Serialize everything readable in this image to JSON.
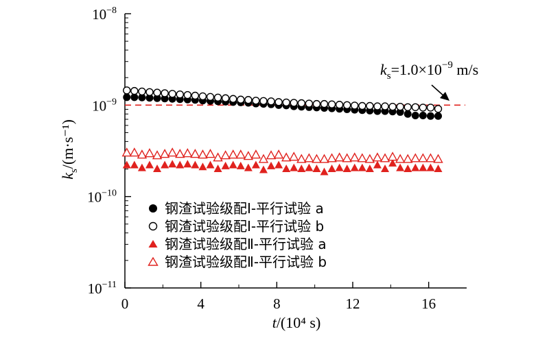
{
  "chart_data": {
    "type": "scatter",
    "x_axis": {
      "label_var": "t",
      "label_unit": "/(10⁴ s)",
      "range": [
        0,
        18
      ],
      "ticks": [
        0,
        4,
        8,
        12,
        16
      ],
      "tick_labels": [
        "0",
        "4",
        "8",
        "12",
        "16"
      ]
    },
    "y_axis": {
      "scale": "log",
      "label_var": "k",
      "label_sub": "s",
      "label_unit": "/(m·s⁻¹)",
      "range": [
        1e-11,
        1e-08
      ],
      "ticks": [
        1e-11,
        1e-10,
        1e-09,
        1e-08
      ],
      "tick_labels": [
        {
          "base": "10",
          "exp": "−11"
        },
        {
          "base": "10",
          "exp": "−10"
        },
        {
          "base": "10",
          "exp": "−9"
        },
        {
          "base": "10",
          "exp": "−8"
        }
      ]
    },
    "reference_line": {
      "y": 1e-09,
      "color": "#e0221e",
      "label": {
        "var": "k",
        "sub": "s",
        "rest": "=1.0×10",
        "exp": "−9",
        "unit": " m/s"
      }
    },
    "legend_position": "lower-left",
    "series": [
      {
        "name": "钢渣试验级配Ⅰ-平行试验 a",
        "marker": "circle-filled",
        "color": "#000000",
        "x": [
          0.1,
          0.5,
          0.9,
          1.3,
          1.7,
          2.1,
          2.5,
          2.9,
          3.3,
          3.7,
          4.1,
          4.5,
          4.9,
          5.3,
          5.7,
          6.1,
          6.5,
          6.9,
          7.3,
          7.7,
          8.1,
          8.5,
          8.9,
          9.3,
          9.7,
          10.1,
          10.5,
          10.9,
          11.3,
          11.7,
          12.1,
          12.5,
          12.9,
          13.3,
          13.7,
          14.1,
          14.5,
          14.9,
          15.3,
          15.7,
          16.1,
          16.5
        ],
        "y": [
          1.22e-09,
          1.22e-09,
          1.21e-09,
          1.2e-09,
          1.19e-09,
          1.18e-09,
          1.17e-09,
          1.16e-09,
          1.15e-09,
          1.14e-09,
          1.12e-09,
          1.11e-09,
          1.1e-09,
          1.09e-09,
          1.08e-09,
          1.07e-09,
          1.06e-09,
          1.04e-09,
          1.03e-09,
          1.02e-09,
          1e-09,
          9.9e-10,
          9.7e-10,
          9.6e-10,
          9.5e-10,
          9.4e-10,
          9.3e-10,
          9.2e-10,
          9.1e-10,
          9e-10,
          8.9e-10,
          8.8e-10,
          8.7e-10,
          8.6e-10,
          8.6e-10,
          8.5e-10,
          8.4e-10,
          8e-10,
          7.7e-10,
          7.7e-10,
          7.6e-10,
          7.6e-10
        ]
      },
      {
        "name": "钢渣试验级配Ⅰ-平行试验 b",
        "marker": "circle-open",
        "color": "#000000",
        "x": [
          0.1,
          0.5,
          0.9,
          1.3,
          1.7,
          2.1,
          2.5,
          2.9,
          3.3,
          3.7,
          4.1,
          4.5,
          4.9,
          5.3,
          5.7,
          6.1,
          6.5,
          6.9,
          7.3,
          7.7,
          8.1,
          8.5,
          8.9,
          9.3,
          9.7,
          10.1,
          10.5,
          10.9,
          11.3,
          11.7,
          12.1,
          12.5,
          12.9,
          13.3,
          13.7,
          14.1,
          14.5,
          14.9,
          15.3,
          15.7,
          16.1,
          16.5
        ],
        "y": [
          1.45e-09,
          1.43e-09,
          1.41e-09,
          1.39e-09,
          1.37e-09,
          1.35e-09,
          1.33e-09,
          1.31e-09,
          1.29e-09,
          1.27e-09,
          1.25e-09,
          1.23e-09,
          1.21e-09,
          1.19e-09,
          1.17e-09,
          1.15e-09,
          1.14e-09,
          1.12e-09,
          1.11e-09,
          1.1e-09,
          1.08e-09,
          1.07e-09,
          1.06e-09,
          1.05e-09,
          1.04e-09,
          1.03e-09,
          1.03e-09,
          1.02e-09,
          1.01e-09,
          1e-09,
          9.9e-10,
          9.8e-10,
          9.8e-10,
          9.7e-10,
          9.7e-10,
          9.6e-10,
          9.6e-10,
          9.5e-10,
          9.5e-10,
          9.4e-10,
          9.4e-10,
          9.1e-10
        ]
      },
      {
        "name": "钢渣试验级配Ⅱ-平行试验 a",
        "marker": "triangle-filled",
        "color": "#e0221e",
        "x": [
          0.1,
          0.5,
          0.9,
          1.3,
          1.7,
          2.1,
          2.5,
          2.9,
          3.3,
          3.7,
          4.1,
          4.5,
          4.9,
          5.3,
          5.7,
          6.1,
          6.5,
          6.9,
          7.3,
          7.7,
          8.1,
          8.5,
          8.9,
          9.3,
          9.7,
          10.1,
          10.5,
          10.9,
          11.3,
          11.7,
          12.1,
          12.5,
          12.9,
          13.3,
          13.7,
          14.1,
          14.5,
          14.9,
          15.3,
          15.7,
          16.1,
          16.5
        ],
        "y": [
          2.2e-10,
          2.2e-10,
          2.05e-10,
          2.2e-10,
          2e-10,
          2.2e-10,
          2.25e-10,
          2.2e-10,
          2.25e-10,
          2.2e-10,
          2.1e-10,
          2.2e-10,
          2e-10,
          2.15e-10,
          2.2e-10,
          2.15e-10,
          2.05e-10,
          2.2e-10,
          1.95e-10,
          2.15e-10,
          2.2e-10,
          2e-10,
          2.05e-10,
          2e-10,
          2.05e-10,
          2e-10,
          1.85e-10,
          2e-10,
          2.05e-10,
          2e-10,
          2.05e-10,
          2.05e-10,
          2e-10,
          2.2e-10,
          2e-10,
          2.3e-10,
          2.05e-10,
          2e-10,
          2.05e-10,
          2.05e-10,
          2.05e-10,
          2e-10
        ]
      },
      {
        "name": "钢渣试验级配Ⅱ-平行试验 b",
        "marker": "triangle-open",
        "color": "#e0221e",
        "x": [
          0.1,
          0.5,
          0.9,
          1.3,
          1.7,
          2.1,
          2.5,
          2.9,
          3.3,
          3.7,
          4.1,
          4.5,
          4.9,
          5.3,
          5.7,
          6.1,
          6.5,
          6.9,
          7.3,
          7.7,
          8.1,
          8.5,
          8.9,
          9.3,
          9.7,
          10.1,
          10.5,
          10.9,
          11.3,
          11.7,
          12.1,
          12.5,
          12.9,
          13.3,
          13.7,
          14.1,
          14.5,
          14.9,
          15.3,
          15.7,
          16.1,
          16.5
        ],
        "y": [
          3e-10,
          3e-10,
          2.85e-10,
          2.95e-10,
          2.8e-10,
          2.9e-10,
          3e-10,
          2.9e-10,
          2.95e-10,
          2.9e-10,
          2.85e-10,
          2.9e-10,
          2.65e-10,
          2.8e-10,
          2.85e-10,
          2.85e-10,
          2.75e-10,
          2.85e-10,
          2.55e-10,
          2.8e-10,
          2.85e-10,
          2.65e-10,
          2.7e-10,
          2.55e-10,
          2.6e-10,
          2.55e-10,
          2.55e-10,
          2.6e-10,
          2.65e-10,
          2.6e-10,
          2.65e-10,
          2.6e-10,
          2.55e-10,
          2.65e-10,
          2.6e-10,
          2.7e-10,
          2.55e-10,
          2.55e-10,
          2.6e-10,
          2.6e-10,
          2.6e-10,
          2.55e-10
        ]
      }
    ]
  }
}
